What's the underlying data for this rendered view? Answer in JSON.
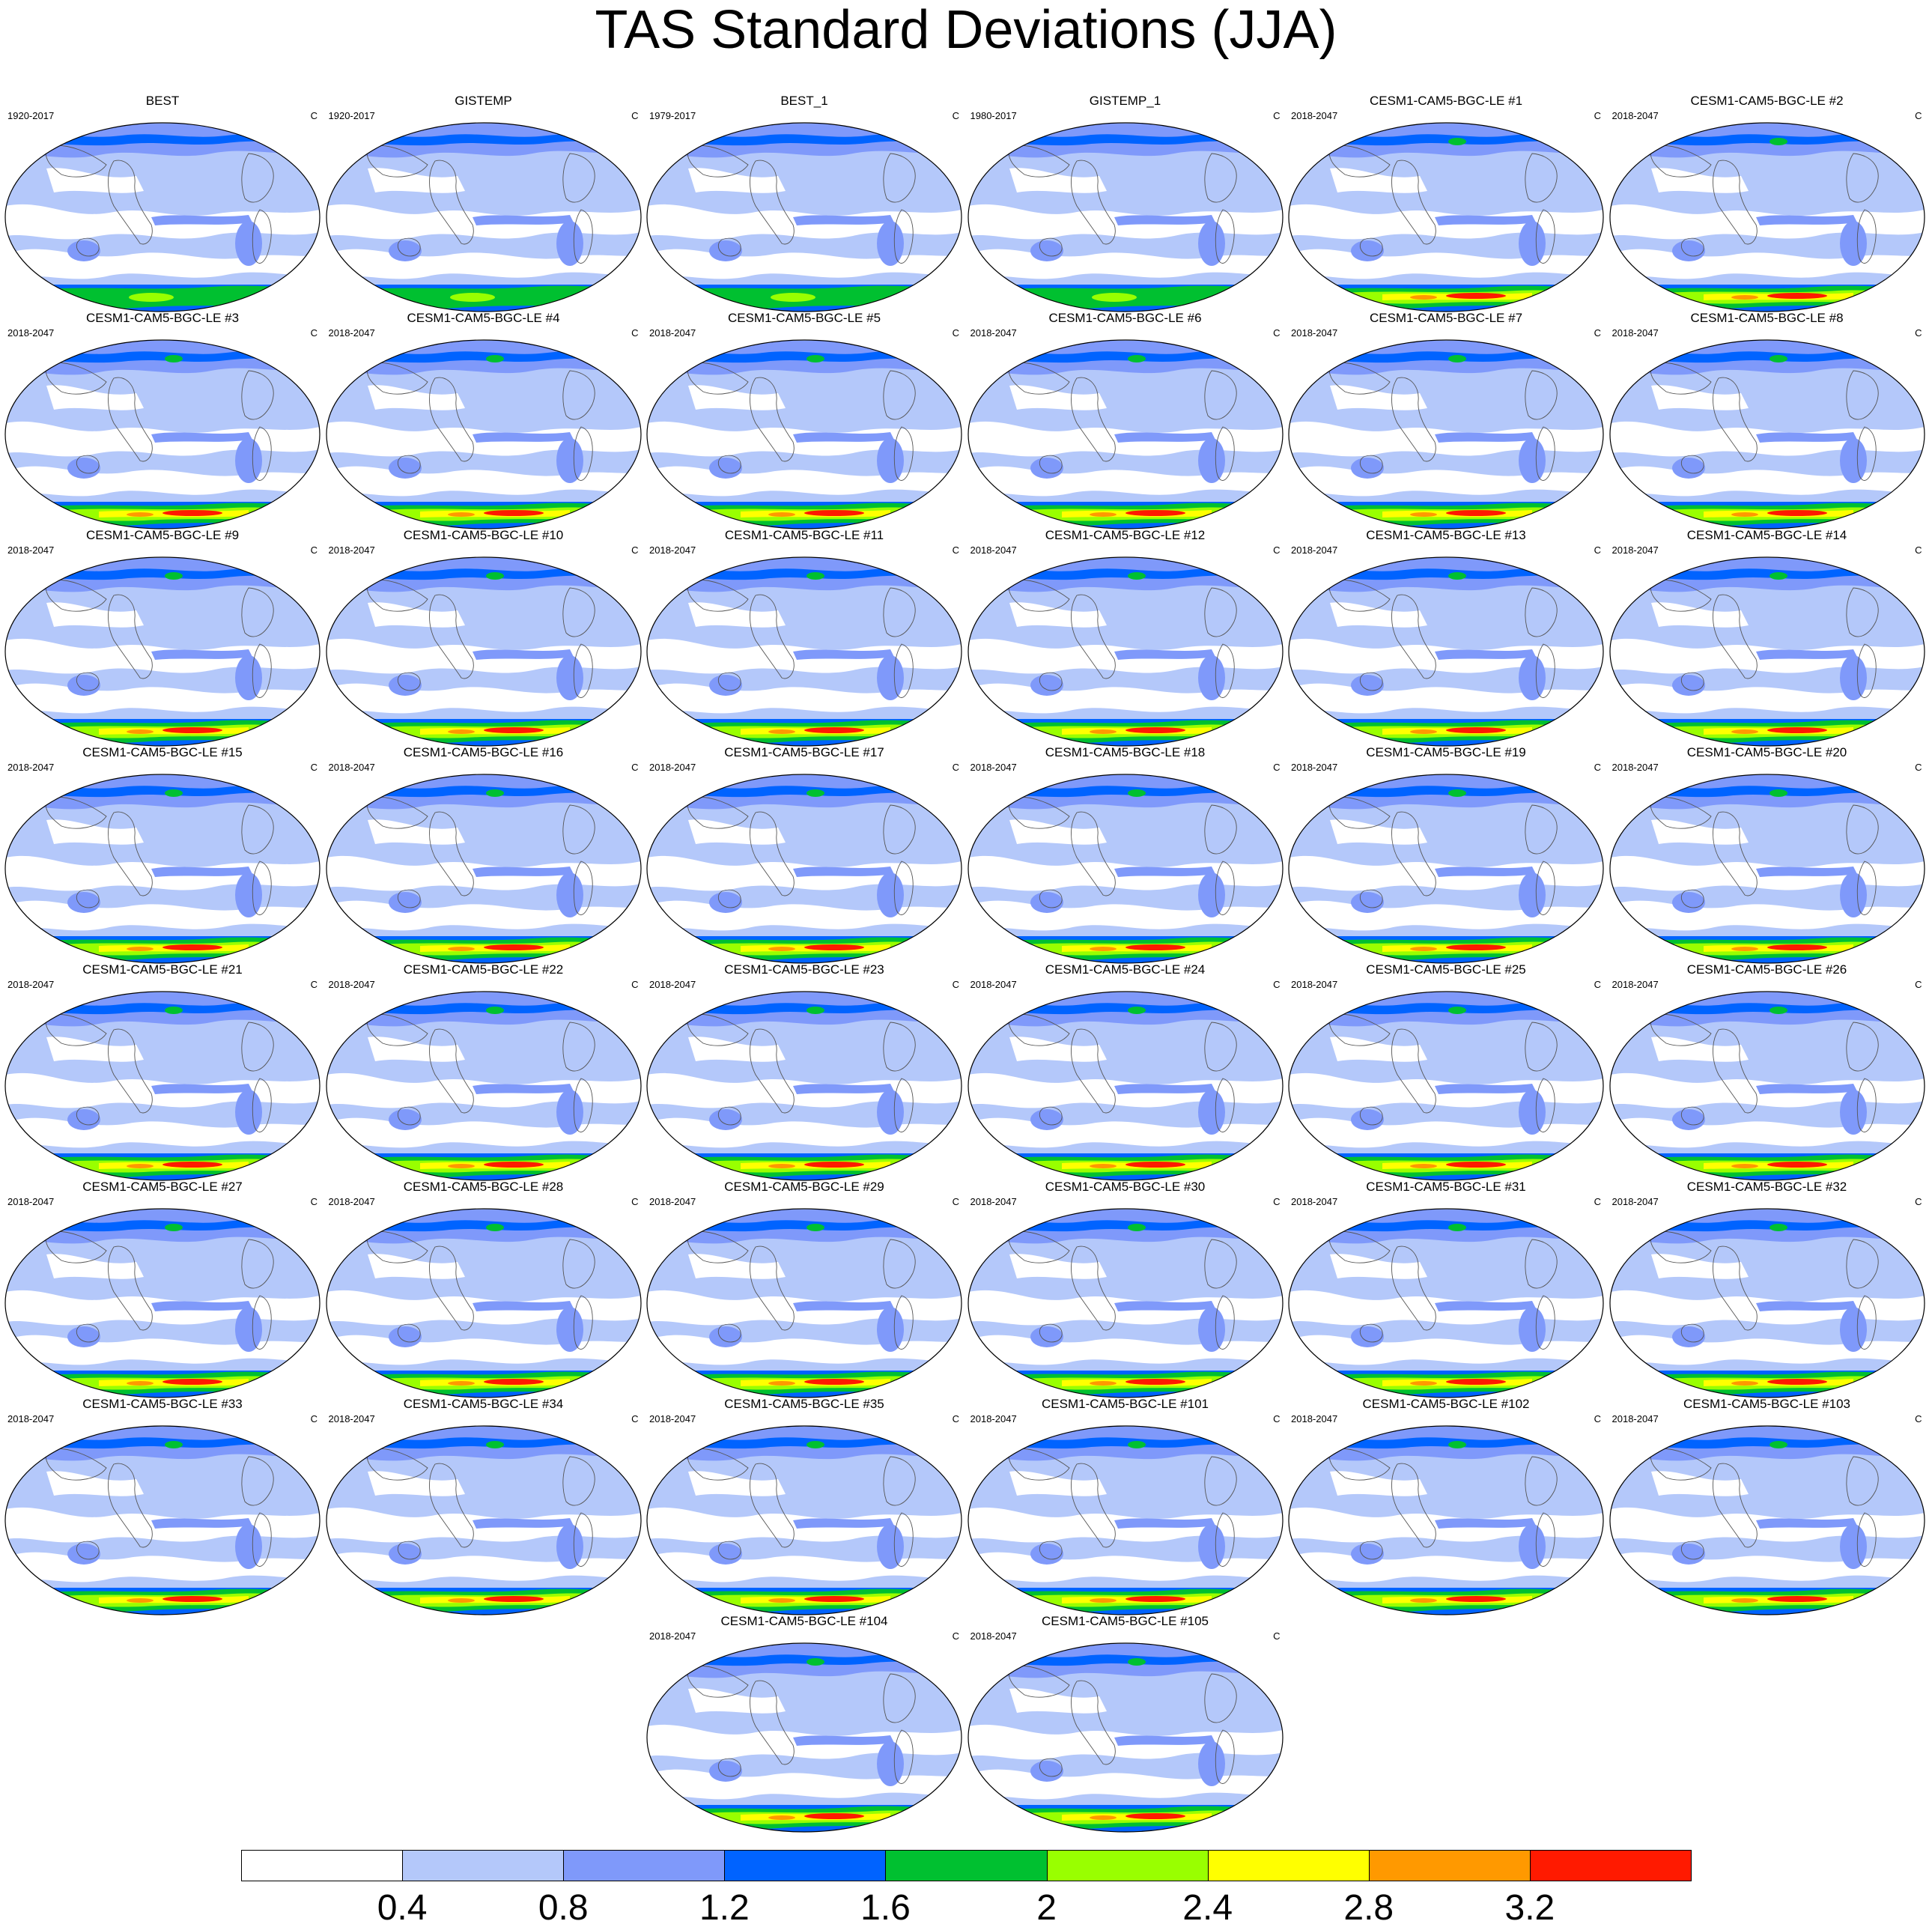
{
  "title": "TAS Standard Deviations (JJA)",
  "units": "C",
  "colorbar": {
    "levels": [
      "0.4",
      "0.8",
      "1.2",
      "1.6",
      "2",
      "2.4",
      "2.8",
      "3.2"
    ],
    "colors": [
      "#ffffff",
      "#b4c8fa",
      "#7f99fa",
      "#0063ff",
      "#00c030",
      "#99ff00",
      "#ffff00",
      "#ff9900",
      "#ff1a00"
    ]
  },
  "panels": [
    {
      "name": "BEST",
      "period": "1920-2017",
      "type": "obs"
    },
    {
      "name": "GISTEMP",
      "period": "1920-2017",
      "type": "obs"
    },
    {
      "name": "BEST_1",
      "period": "1979-2017",
      "type": "obs"
    },
    {
      "name": "GISTEMP_1",
      "period": "1980-2017",
      "type": "obs"
    },
    {
      "name": "CESM1-CAM5-BGC-LE #1",
      "period": "2018-2047",
      "type": "model"
    },
    {
      "name": "CESM1-CAM5-BGC-LE #2",
      "period": "2018-2047",
      "type": "model"
    },
    {
      "name": "CESM1-CAM5-BGC-LE #3",
      "period": "2018-2047",
      "type": "model"
    },
    {
      "name": "CESM1-CAM5-BGC-LE #4",
      "period": "2018-2047",
      "type": "model"
    },
    {
      "name": "CESM1-CAM5-BGC-LE #5",
      "period": "2018-2047",
      "type": "model"
    },
    {
      "name": "CESM1-CAM5-BGC-LE #6",
      "period": "2018-2047",
      "type": "model"
    },
    {
      "name": "CESM1-CAM5-BGC-LE #7",
      "period": "2018-2047",
      "type": "model"
    },
    {
      "name": "CESM1-CAM5-BGC-LE #8",
      "period": "2018-2047",
      "type": "model"
    },
    {
      "name": "CESM1-CAM5-BGC-LE #9",
      "period": "2018-2047",
      "type": "model"
    },
    {
      "name": "CESM1-CAM5-BGC-LE #10",
      "period": "2018-2047",
      "type": "model"
    },
    {
      "name": "CESM1-CAM5-BGC-LE #11",
      "period": "2018-2047",
      "type": "model"
    },
    {
      "name": "CESM1-CAM5-BGC-LE #12",
      "period": "2018-2047",
      "type": "model"
    },
    {
      "name": "CESM1-CAM5-BGC-LE #13",
      "period": "2018-2047",
      "type": "model"
    },
    {
      "name": "CESM1-CAM5-BGC-LE #14",
      "period": "2018-2047",
      "type": "model"
    },
    {
      "name": "CESM1-CAM5-BGC-LE #15",
      "period": "2018-2047",
      "type": "model"
    },
    {
      "name": "CESM1-CAM5-BGC-LE #16",
      "period": "2018-2047",
      "type": "model"
    },
    {
      "name": "CESM1-CAM5-BGC-LE #17",
      "period": "2018-2047",
      "type": "model"
    },
    {
      "name": "CESM1-CAM5-BGC-LE #18",
      "period": "2018-2047",
      "type": "model"
    },
    {
      "name": "CESM1-CAM5-BGC-LE #19",
      "period": "2018-2047",
      "type": "model"
    },
    {
      "name": "CESM1-CAM5-BGC-LE #20",
      "period": "2018-2047",
      "type": "model"
    },
    {
      "name": "CESM1-CAM5-BGC-LE #21",
      "period": "2018-2047",
      "type": "model"
    },
    {
      "name": "CESM1-CAM5-BGC-LE #22",
      "period": "2018-2047",
      "type": "model"
    },
    {
      "name": "CESM1-CAM5-BGC-LE #23",
      "period": "2018-2047",
      "type": "model"
    },
    {
      "name": "CESM1-CAM5-BGC-LE #24",
      "period": "2018-2047",
      "type": "model"
    },
    {
      "name": "CESM1-CAM5-BGC-LE #25",
      "period": "2018-2047",
      "type": "model"
    },
    {
      "name": "CESM1-CAM5-BGC-LE #26",
      "period": "2018-2047",
      "type": "model"
    },
    {
      "name": "CESM1-CAM5-BGC-LE #27",
      "period": "2018-2047",
      "type": "model"
    },
    {
      "name": "CESM1-CAM5-BGC-LE #28",
      "period": "2018-2047",
      "type": "model"
    },
    {
      "name": "CESM1-CAM5-BGC-LE #29",
      "period": "2018-2047",
      "type": "model"
    },
    {
      "name": "CESM1-CAM5-BGC-LE #30",
      "period": "2018-2047",
      "type": "model"
    },
    {
      "name": "CESM1-CAM5-BGC-LE #31",
      "period": "2018-2047",
      "type": "model"
    },
    {
      "name": "CESM1-CAM5-BGC-LE #32",
      "period": "2018-2047",
      "type": "model"
    },
    {
      "name": "CESM1-CAM5-BGC-LE #33",
      "period": "2018-2047",
      "type": "model"
    },
    {
      "name": "CESM1-CAM5-BGC-LE #34",
      "period": "2018-2047",
      "type": "model"
    },
    {
      "name": "CESM1-CAM5-BGC-LE #35",
      "period": "2018-2047",
      "type": "model"
    },
    {
      "name": "CESM1-CAM5-BGC-LE #101",
      "period": "2018-2047",
      "type": "model"
    },
    {
      "name": "CESM1-CAM5-BGC-LE #102",
      "period": "2018-2047",
      "type": "model"
    },
    {
      "name": "CESM1-CAM5-BGC-LE #103",
      "period": "2018-2047",
      "type": "model"
    },
    {
      "name": "CESM1-CAM5-BGC-LE #104",
      "period": "2018-2047",
      "type": "model"
    },
    {
      "name": "CESM1-CAM5-BGC-LE #105",
      "period": "2018-2047",
      "type": "model"
    }
  ]
}
